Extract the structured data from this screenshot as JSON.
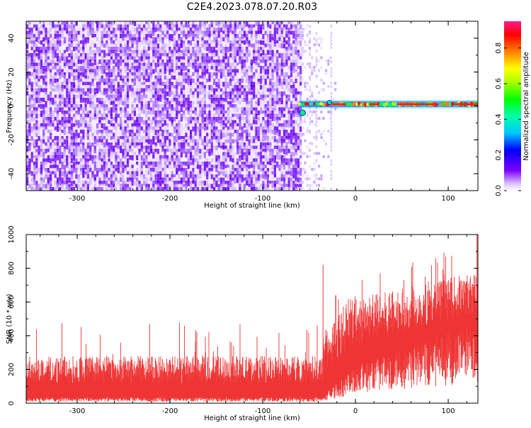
{
  "title": "C2E4.2023.078.07.20.R03",
  "chart_data": [
    {
      "type": "heatmap",
      "xlabel": "Height of straight line (km)",
      "ylabel": "Frequency (Hz)",
      "xlim": [
        -355,
        132
      ],
      "ylim": [
        -50,
        50
      ],
      "xticks": [
        -300,
        -200,
        -100,
        0,
        100
      ],
      "yticks": [
        -40,
        -20,
        0,
        20,
        40
      ],
      "xticklabels": [
        "-300",
        "-200",
        "-100",
        "0",
        "100"
      ],
      "yticklabels": [
        "-40",
        "-20",
        "0",
        "20",
        "40"
      ],
      "noise_region": {
        "x_from": -355,
        "x_to": -58,
        "level": "0.0-0.3"
      },
      "sparse_region": {
        "x_from": -58,
        "x_to": -20
      },
      "signal_trace": {
        "x_from": -60,
        "x_to": 132,
        "freq_hz": 1,
        "amplitude_range": [
          0.3,
          0.9
        ]
      },
      "colorbar": {
        "label": "Normalized spectral amplitude",
        "range": [
          0,
          0.95
        ],
        "ticks": [
          0.0,
          0.2,
          0.4,
          0.6,
          0.8
        ],
        "ticklabels": [
          "0.0",
          "0.2",
          "0.4",
          "0.6",
          "0.8"
        ],
        "colors": [
          "#ffffff",
          "#7a00ff",
          "#0000ff",
          "#00ffff",
          "#00ff00",
          "#ffff00",
          "#ff8000",
          "#ff0000",
          "#ff1a8c"
        ]
      }
    },
    {
      "type": "area",
      "xlabel": "Height of straight line (km)",
      "ylabel": "SNR (10 * v/v)",
      "xlim": [
        -355,
        132
      ],
      "ylim": [
        0,
        1000
      ],
      "xticks": [
        -300,
        -200,
        -100,
        0,
        100
      ],
      "yticks": [
        0,
        200,
        400,
        600,
        800,
        1000
      ],
      "xticklabels": [
        "-300",
        "-200",
        "-100",
        "0",
        "100"
      ],
      "yticklabels": [
        "0",
        "200",
        "400",
        "600",
        "800",
        "1000"
      ],
      "series_color": "#ef3434",
      "segments": [
        {
          "x_from": -355,
          "x_to": -35,
          "low": 30,
          "high": 280,
          "peak": 480
        },
        {
          "x_from": -35,
          "x_to": 0,
          "low": 60,
          "high": 620,
          "peak": 820
        },
        {
          "x_from": 0,
          "x_to": 132,
          "low": 250,
          "high": 700,
          "peak": 1000
        }
      ]
    }
  ]
}
